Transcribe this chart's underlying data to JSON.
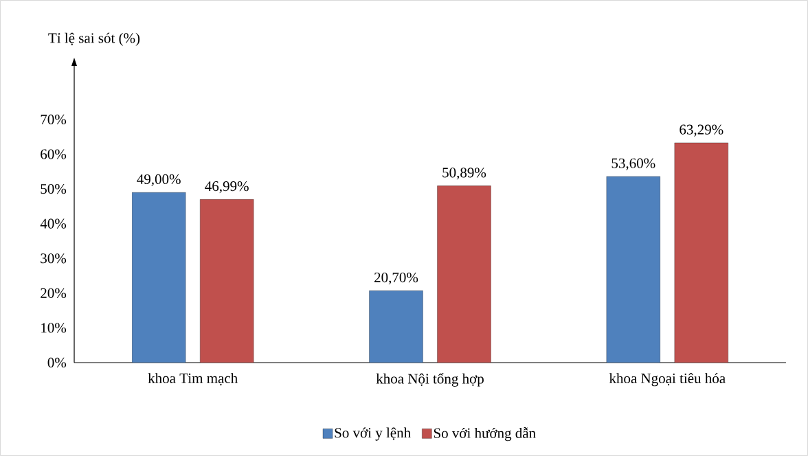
{
  "chart_data": {
    "type": "bar",
    "ylabel": "Tỉ lệ sai sót (%)",
    "categories": [
      "khoa Tim mạch",
      "khoa Nội tổng hợp",
      "khoa Ngoại tiêu hóa"
    ],
    "series": [
      {
        "name": "So với y lệnh",
        "color": "#4f81bd",
        "values": [
          49.0,
          20.7,
          53.6
        ],
        "value_labels": [
          "49,00%",
          "20,70%",
          "53,60%"
        ]
      },
      {
        "name": "So với hướng dẫn",
        "color": "#c0504d",
        "values": [
          46.99,
          50.89,
          63.29
        ],
        "value_labels": [
          "46,99%",
          "50,89%",
          "63,29%"
        ]
      }
    ],
    "ylim": [
      0,
      87
    ],
    "yticks": [
      {
        "value": 0,
        "label": "0%"
      },
      {
        "value": 10,
        "label": "10%"
      },
      {
        "value": 20,
        "label": "20%"
      },
      {
        "value": 30,
        "label": "30%"
      },
      {
        "value": 40,
        "label": "40%"
      },
      {
        "value": 50,
        "label": "50%"
      },
      {
        "value": 60,
        "label": "60%"
      },
      {
        "value": 70,
        "label": "70%"
      }
    ],
    "legend": "bottom"
  }
}
